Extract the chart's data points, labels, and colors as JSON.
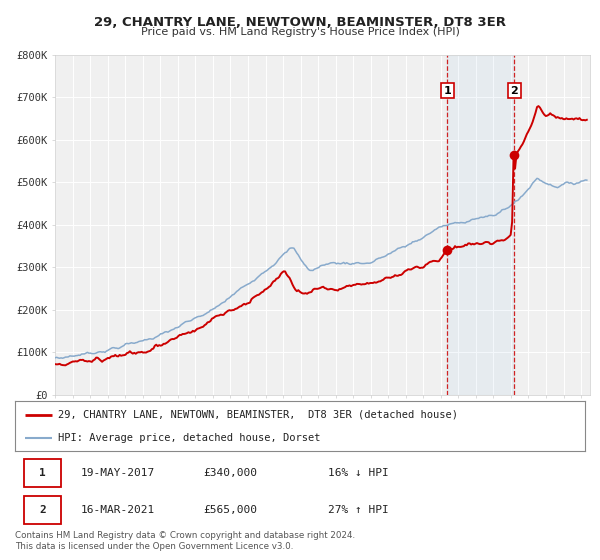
{
  "title": "29, CHANTRY LANE, NEWTOWN, BEAMINSTER, DT8 3ER",
  "subtitle": "Price paid vs. HM Land Registry's House Price Index (HPI)",
  "ylim": [
    0,
    800000
  ],
  "yticks": [
    0,
    100000,
    200000,
    300000,
    400000,
    500000,
    600000,
    700000,
    800000
  ],
  "ytick_labels": [
    "£0",
    "£100K",
    "£200K",
    "£300K",
    "£400K",
    "£500K",
    "£600K",
    "£700K",
    "£800K"
  ],
  "background_color": "#ffffff",
  "plot_bg_color": "#f0f0f0",
  "grid_color": "#ffffff",
  "legend_line1": "29, CHANTRY LANE, NEWTOWN, BEAMINSTER,  DT8 3ER (detached house)",
  "legend_line2": "HPI: Average price, detached house, Dorset",
  "red_color": "#cc0000",
  "blue_color": "#88aacc",
  "marker1_date": 2017.37,
  "marker1_value": 340000,
  "marker1_label": "1",
  "marker2_date": 2021.19,
  "marker2_value": 565000,
  "marker2_label": "2",
  "table_row1": [
    "1",
    "19-MAY-2017",
    "£340,000",
    "16% ↓ HPI"
  ],
  "table_row2": [
    "2",
    "16-MAR-2021",
    "£565,000",
    "27% ↑ HPI"
  ],
  "footnote1": "Contains HM Land Registry data © Crown copyright and database right 2024.",
  "footnote2": "This data is licensed under the Open Government Licence v3.0.",
  "shade_x1": 2017.37,
  "shade_x2": 2021.19,
  "vline1_x": 2017.37,
  "vline2_x": 2021.19,
  "xlim_start": 1995,
  "xlim_end": 2025.5
}
